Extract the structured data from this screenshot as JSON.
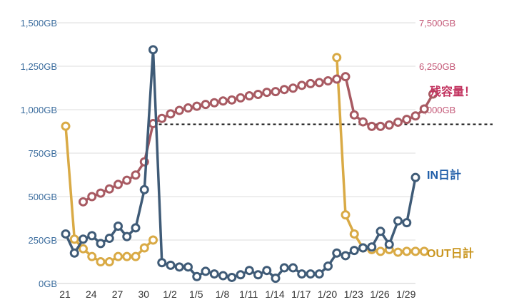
{
  "chart_data": {
    "type": "line",
    "grid": true,
    "left_axis": {
      "unit": "GB",
      "ylim": [
        0,
        1500
      ],
      "ticks": [
        0,
        250,
        500,
        750,
        1000,
        1250,
        1500
      ],
      "tick_labels": [
        "0GB",
        "250GB",
        "500GB",
        "750GB",
        "1,000GB",
        "1,250GB",
        "1,500GB"
      ]
    },
    "right_axis": {
      "unit": "GB",
      "ylim": [
        0,
        7500
      ],
      "ticks": [
        5000,
        6250,
        7500
      ],
      "tick_labels": [
        "5,000GB",
        "6,250GB",
        "7,500GB"
      ]
    },
    "x_tick_labels": [
      "21",
      "24",
      "27",
      "30",
      "1/2",
      "1/5",
      "1/8",
      "1/11",
      "1/14",
      "1/17",
      "1/20",
      "1/23",
      "1/26",
      "1/29"
    ],
    "x_tick_indices": [
      0,
      3,
      6,
      9,
      12,
      15,
      18,
      21,
      24,
      27,
      30,
      33,
      36,
      39
    ],
    "dashed_reference": {
      "axis": "right",
      "value": 4580,
      "from_index": 10,
      "to_end": true
    },
    "colors": {
      "in": "#3f5b77",
      "out": "#d9aa45",
      "remaining": "#a85a62",
      "left_axis": "#3c6d9e",
      "right_axis": "#c45a78",
      "remaining_label": "#c2335f",
      "in_label": "#1f5da8",
      "out_label": "#c9951e"
    },
    "series": [
      {
        "key": "in",
        "name": "IN日計",
        "axis": "left",
        "start_index": 0,
        "values": [
          285,
          175,
          255,
          275,
          230,
          260,
          330,
          270,
          320,
          540,
          1345,
          120,
          105,
          95,
          95,
          40,
          70,
          55,
          45,
          35,
          50,
          75,
          50,
          75,
          30,
          90,
          90,
          55,
          55,
          55,
          100,
          175,
          160,
          190,
          205,
          210,
          300,
          225,
          360,
          350,
          610
        ]
      },
      {
        "key": "out",
        "name": "OUT日計",
        "axis": "left",
        "start_index": 0,
        "values": [
          905,
          255,
          200,
          155,
          125,
          125,
          155,
          155,
          155,
          205,
          250
        ],
        "tail_start_index": 31,
        "tail_values": [
          1300,
          395,
          285,
          205,
          195,
          185,
          195,
          180,
          185,
          185,
          185
        ]
      },
      {
        "key": "remaining",
        "name": "残容量！",
        "axis": "right",
        "start_index": 2,
        "values": [
          2350,
          2500,
          2600,
          2720,
          2850,
          2970,
          3120,
          3500,
          4600,
          4750,
          4880,
          4980,
          5050,
          5100,
          5150,
          5200,
          5250,
          5280,
          5340,
          5400,
          5440,
          5500,
          5520,
          5580,
          5620,
          5700,
          5750,
          5780,
          5830,
          5880,
          5950,
          4850,
          4650,
          4520,
          4520,
          4560,
          4640,
          4720,
          4820,
          5020,
          5450
        ]
      }
    ]
  }
}
